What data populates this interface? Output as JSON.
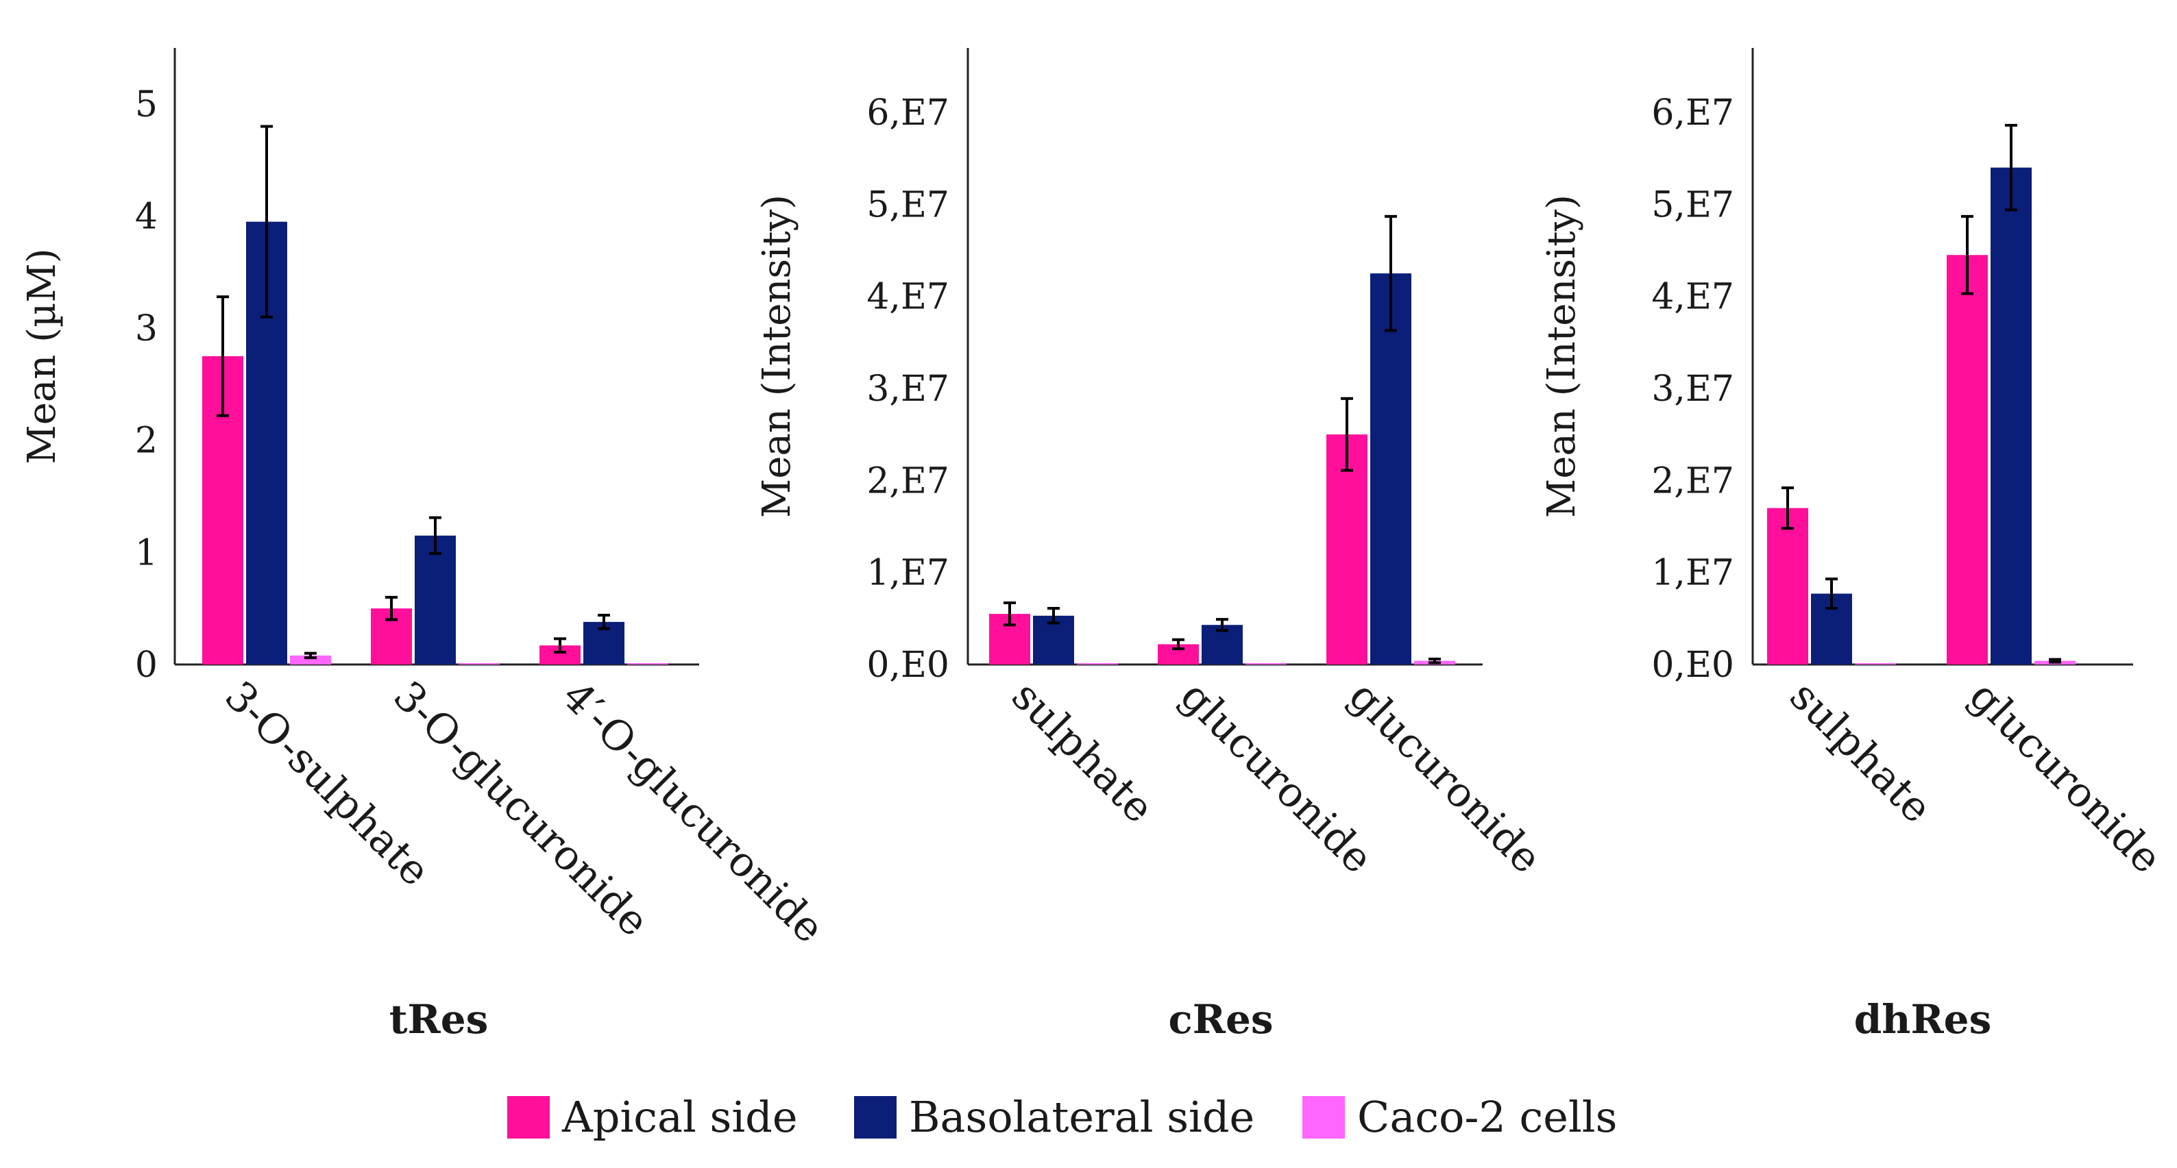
{
  "chart_data": [
    {
      "type": "bar",
      "title": "tRes",
      "xlabel": "",
      "ylabel": "Mean (µM)",
      "ylim": [
        0,
        5.5
      ],
      "yticks": [
        0,
        1,
        2,
        3,
        4,
        5
      ],
      "ytick_labels": [
        "0",
        "1",
        "2",
        "3",
        "4",
        "5"
      ],
      "categories": [
        "3-O-sulphate",
        "3-O-glucuronide",
        "4′-O-glucuronide"
      ],
      "series": [
        {
          "name": "Apical side",
          "values": [
            2.75,
            0.5,
            0.17
          ],
          "errors": [
            0.53,
            0.1,
            0.06
          ]
        },
        {
          "name": "Basolateral side",
          "values": [
            3.95,
            1.15,
            0.38
          ],
          "errors": [
            0.85,
            0.16,
            0.06
          ]
        },
        {
          "name": "Caco-2 cells",
          "values": [
            0.08,
            0.0,
            0.0
          ],
          "errors": [
            0.02,
            0.0,
            0.0
          ]
        }
      ]
    },
    {
      "type": "bar",
      "title": "cRes",
      "xlabel": "",
      "ylabel": "Mean (Intensity)",
      "ylim": [
        0,
        67000000
      ],
      "yticks": [
        0,
        10000000,
        20000000,
        30000000,
        40000000,
        50000000,
        60000000
      ],
      "ytick_labels": [
        "0,E0",
        "1,E7",
        "2,E7",
        "3,E7",
        "4,E7",
        "5,E7",
        "6,E7"
      ],
      "categories": [
        "sulphate",
        "glucuronide",
        "glucuronide"
      ],
      "series": [
        {
          "name": "Apical side",
          "values": [
            5500000,
            2200000,
            25000000
          ],
          "errors": [
            1200000,
            500000,
            3900000
          ]
        },
        {
          "name": "Basolateral side",
          "values": [
            5300000,
            4300000,
            42500000
          ],
          "errors": [
            800000,
            600000,
            6200000
          ]
        },
        {
          "name": "Caco-2 cells",
          "values": [
            150000,
            100000,
            400000
          ],
          "errors": [
            0,
            0,
            200000
          ]
        }
      ]
    },
    {
      "type": "bar",
      "title": "dhRes",
      "xlabel": "",
      "ylabel": "Mean (Intensity)",
      "ylim": [
        0,
        67000000
      ],
      "yticks": [
        0,
        10000000,
        20000000,
        30000000,
        40000000,
        50000000,
        60000000
      ],
      "ytick_labels": [
        "0,E0",
        "1,E7",
        "2,E7",
        "3,E7",
        "4,E7",
        "5,E7",
        "6,E7"
      ],
      "categories": [
        "sulphate",
        "glucuronide"
      ],
      "series": [
        {
          "name": "Apical side",
          "values": [
            17000000,
            44500000
          ],
          "errors": [
            2200000,
            4200000
          ]
        },
        {
          "name": "Basolateral side",
          "values": [
            7700000,
            54000000
          ],
          "errors": [
            1600000,
            4600000
          ]
        },
        {
          "name": "Caco-2 cells",
          "values": [
            150000,
            400000
          ],
          "errors": [
            0,
            150000
          ]
        }
      ]
    }
  ],
  "legend": [
    {
      "label": "Apical side",
      "color": "#ff0f9a"
    },
    {
      "label": "Basolateral side",
      "color": "#0b1e78"
    },
    {
      "label": "Caco-2 cells",
      "color": "#ff66ff"
    }
  ]
}
